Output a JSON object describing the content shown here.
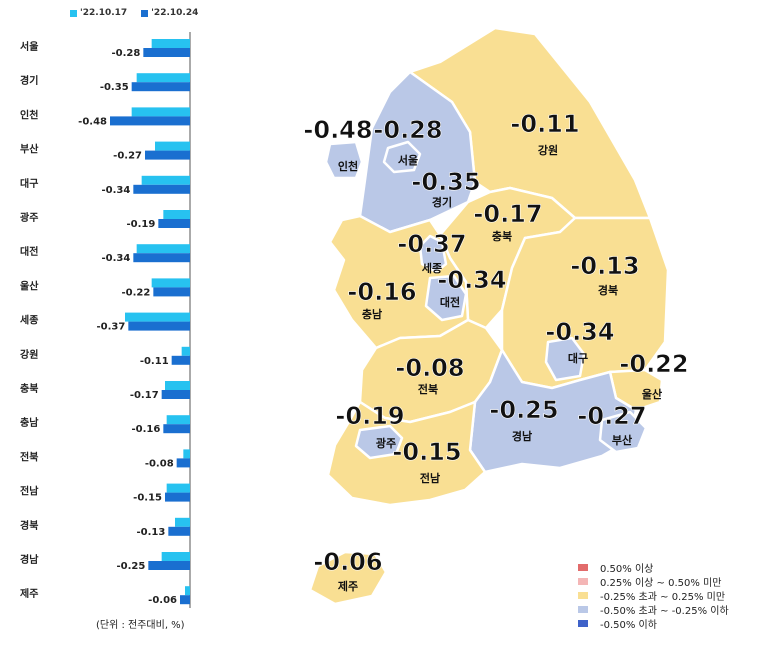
{
  "legend_series": [
    {
      "label": "'22.10.17",
      "color": "#27c2f0"
    },
    {
      "label": "'22.10.24",
      "color": "#1a6fd0"
    }
  ],
  "unit_note": "(단위 : 전주대비, %)",
  "chart_data": {
    "type": "bar",
    "orientation": "horizontal",
    "categories": [
      "서울",
      "경기",
      "인천",
      "부산",
      "대구",
      "광주",
      "대전",
      "울산",
      "세종",
      "강원",
      "충북",
      "충남",
      "전북",
      "전남",
      "경북",
      "경남",
      "제주"
    ],
    "series": [
      {
        "name": "'22.10.17",
        "values": [
          -0.23,
          -0.32,
          -0.35,
          -0.21,
          -0.29,
          -0.16,
          -0.32,
          -0.23,
          -0.39,
          -0.05,
          -0.15,
          -0.14,
          -0.04,
          -0.14,
          -0.09,
          -0.17,
          -0.03
        ]
      },
      {
        "name": "'22.10.24",
        "values": [
          -0.28,
          -0.35,
          -0.48,
          -0.27,
          -0.34,
          -0.19,
          -0.34,
          -0.22,
          -0.37,
          -0.11,
          -0.17,
          -0.16,
          -0.08,
          -0.15,
          -0.13,
          -0.25,
          -0.06
        ]
      }
    ],
    "value_labels": [
      "-0.28",
      "-0.35",
      "-0.48",
      "-0.27",
      "-0.34",
      "-0.19",
      "-0.34",
      "-0.22",
      "-0.37",
      "-0.11",
      "-0.17",
      "-0.16",
      "-0.08",
      "-0.15",
      "-0.13",
      "-0.25",
      "-0.06"
    ],
    "xlim": [
      -0.5,
      0
    ]
  },
  "map": {
    "colors": {
      "mid_band": "#f9df93",
      "low_band": "#bac8e7",
      "border": "#ffffff",
      "sea_outline": "#9aa"
    },
    "regions": [
      {
        "name": "인천",
        "value": "-0.48",
        "band": "low"
      },
      {
        "name": "서울",
        "value": "-0.28",
        "band": "low"
      },
      {
        "name": "경기",
        "value": "-0.35",
        "band": "low"
      },
      {
        "name": "강원",
        "value": "-0.11",
        "band": "mid"
      },
      {
        "name": "충북",
        "value": "-0.17",
        "band": "mid"
      },
      {
        "name": "세종",
        "value": "-0.37",
        "band": "low"
      },
      {
        "name": "대전",
        "value": "-0.34",
        "band": "low"
      },
      {
        "name": "충남",
        "value": "-0.16",
        "band": "mid"
      },
      {
        "name": "경북",
        "value": "-0.13",
        "band": "mid"
      },
      {
        "name": "대구",
        "value": "-0.34",
        "band": "low"
      },
      {
        "name": "전북",
        "value": "-0.08",
        "band": "mid"
      },
      {
        "name": "울산",
        "value": "-0.22",
        "band": "mid"
      },
      {
        "name": "광주",
        "value": "-0.19",
        "band": "mid"
      },
      {
        "name": "경남",
        "value": "-0.25",
        "band": "low"
      },
      {
        "name": "부산",
        "value": "-0.27",
        "band": "low"
      },
      {
        "name": "전남",
        "value": "-0.15",
        "band": "mid"
      },
      {
        "name": "제주",
        "value": "-0.06",
        "band": "mid"
      }
    ]
  },
  "map_legend": [
    {
      "label": "0.50% 이상",
      "color": "#e26b6b"
    },
    {
      "label": "0.25% 이상 ~ 0.50% 미만",
      "color": "#f4b6b6"
    },
    {
      "label": "-0.25% 초과 ~ 0.25% 미만",
      "color": "#f9df93"
    },
    {
      "label": "-0.50% 초과 ~ -0.25% 이하",
      "color": "#bac8e7"
    },
    {
      "label": "-0.50% 이하",
      "color": "#3f62c9"
    }
  ]
}
